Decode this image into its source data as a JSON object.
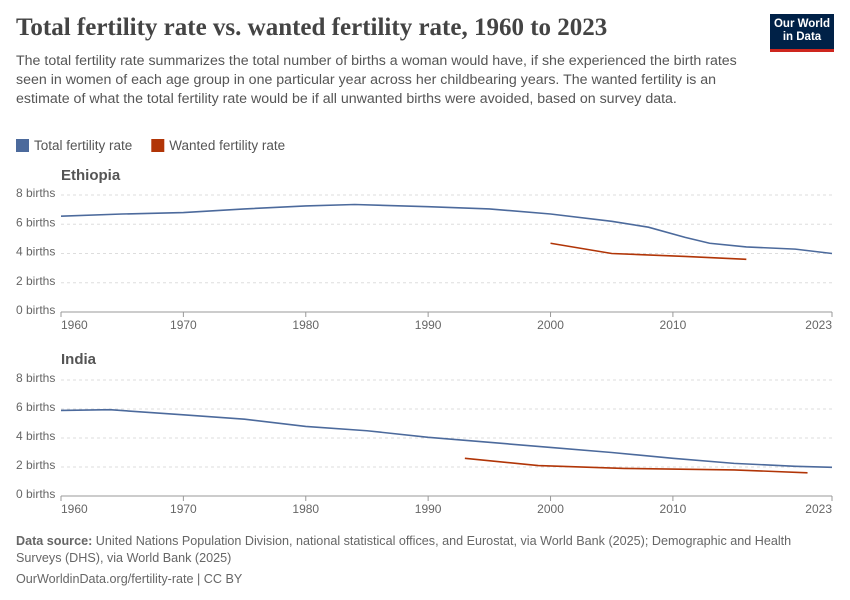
{
  "header": {
    "title": "Total fertility rate vs. wanted fertility rate, 1960 to 2023",
    "subtitle": "The total fertility rate summarizes the total number of births a woman would have, if she experienced the birth rates seen in women of each age group in one particular year across her childbearing years. The wanted fertility is an estimate of what the total fertility rate would be if all unwanted births were avoided, based on survey data.",
    "logo": [
      "Our World",
      "in Data"
    ]
  },
  "footer": {
    "source_label": "Data source:",
    "source": "United Nations Population Division, national statistical offices, and Eurostat, via World Bank (2025); Demographic and Health Surveys (DHS), via World Bank (2025)",
    "url": "OurWorldinData.org/fertility-rate | CC BY"
  },
  "chart_data": [
    {
      "type": "line",
      "title": "Ethiopia",
      "xlim": [
        1960,
        2023
      ],
      "xticks": [
        1960,
        1970,
        1980,
        1990,
        2000,
        2010,
        2023
      ],
      "ylim": [
        0,
        8
      ],
      "yticks": [
        {
          "value": 0,
          "label": "0 births"
        },
        {
          "value": 2,
          "label": "2 births"
        },
        {
          "value": 4,
          "label": "4 births"
        },
        {
          "value": 6,
          "label": "6 births"
        },
        {
          "value": 8,
          "label": "8 births"
        }
      ],
      "grid": true,
      "series": [
        {
          "name": "Total fertility rate",
          "color": "#4c6a9c",
          "x": [
            1960,
            1965,
            1970,
            1975,
            1980,
            1984,
            1990,
            1995,
            2000,
            2005,
            2008,
            2011,
            2013,
            2016,
            2020,
            2023
          ],
          "values": [
            6.55,
            6.7,
            6.8,
            7.05,
            7.25,
            7.35,
            7.2,
            7.05,
            6.7,
            6.2,
            5.8,
            5.1,
            4.7,
            4.45,
            4.3,
            4.0
          ]
        },
        {
          "name": "Wanted fertility rate",
          "color": "#b13507",
          "x": [
            2000,
            2005,
            2011,
            2016
          ],
          "values": [
            4.7,
            4.0,
            3.8,
            3.6
          ]
        }
      ]
    },
    {
      "type": "line",
      "title": "India",
      "xlim": [
        1960,
        2023
      ],
      "xticks": [
        1960,
        1970,
        1980,
        1990,
        2000,
        2010,
        2023
      ],
      "ylim": [
        0,
        8
      ],
      "yticks": [
        {
          "value": 0,
          "label": "0 births"
        },
        {
          "value": 2,
          "label": "2 births"
        },
        {
          "value": 4,
          "label": "4 births"
        },
        {
          "value": 6,
          "label": "6 births"
        },
        {
          "value": 8,
          "label": "8 births"
        }
      ],
      "grid": true,
      "series": [
        {
          "color": "#4c6a9c",
          "x": [
            1960,
            1964,
            1970,
            1975,
            1980,
            1985,
            1990,
            1995,
            2000,
            2005,
            2010,
            2015,
            2020,
            2023
          ],
          "values": [
            5.9,
            5.95,
            5.6,
            5.3,
            4.8,
            4.5,
            4.05,
            3.7,
            3.35,
            3.0,
            2.6,
            2.25,
            2.05,
            1.98
          ]
        },
        {
          "color": "#b13507",
          "x": [
            1993,
            1999,
            2006,
            2015,
            2021
          ],
          "values": [
            2.6,
            2.1,
            1.9,
            1.8,
            1.6
          ]
        }
      ]
    }
  ]
}
